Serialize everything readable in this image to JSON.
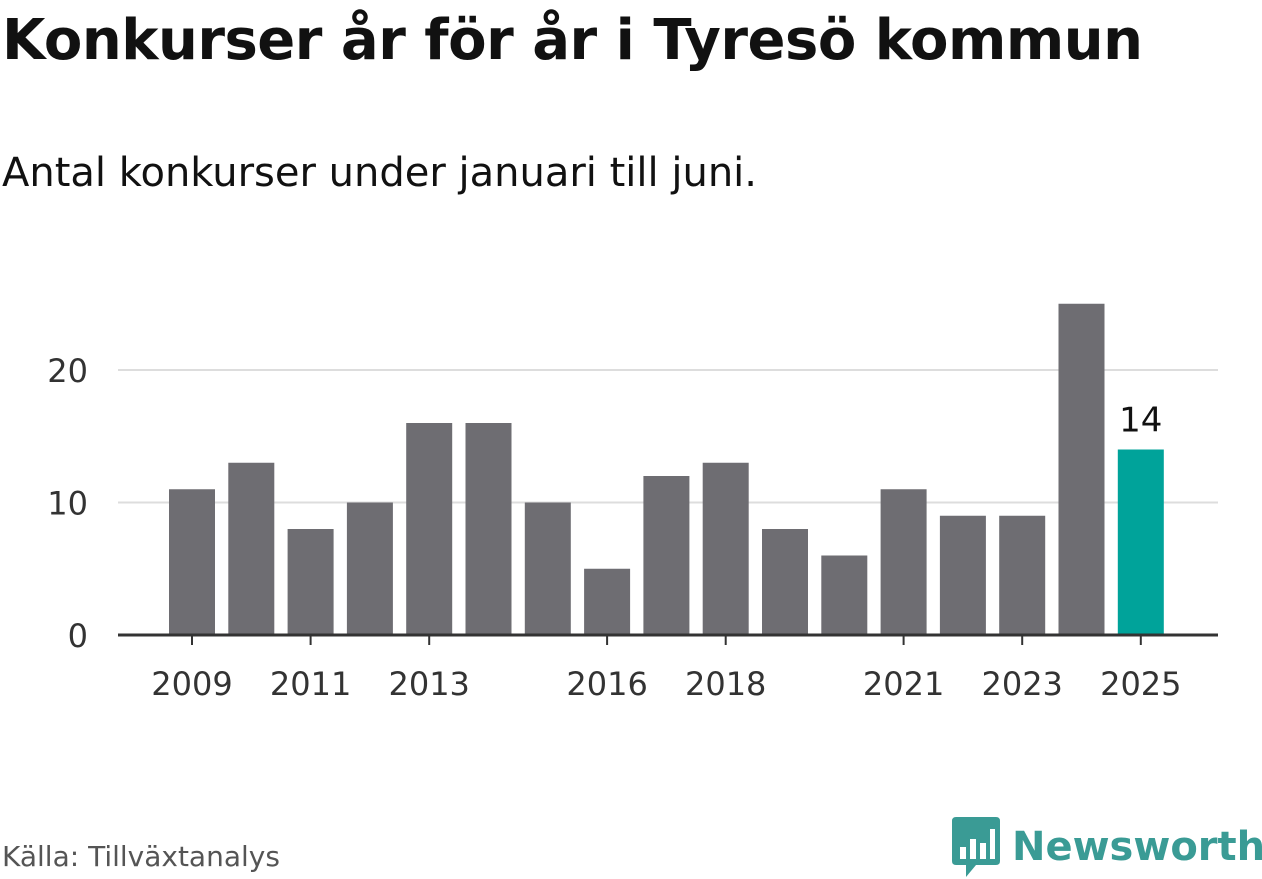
{
  "title": "Konkurser år för år i Tyresö kommun",
  "subtitle": "Antal konkurser under januari till juni.",
  "source": "Källa: Tillväxtanalys",
  "brand": {
    "name": "Newsworthy",
    "icon": "newsworthy-logo-icon",
    "color": "#3a9b95"
  },
  "chart_data": {
    "type": "bar",
    "categories": [
      "2009",
      "2010",
      "2011",
      "2012",
      "2013",
      "2014",
      "2015",
      "2016",
      "2017",
      "2018",
      "2019",
      "2020",
      "2021",
      "2022",
      "2023",
      "2024",
      "2025"
    ],
    "values": [
      11,
      13,
      8,
      10,
      16,
      16,
      10,
      5,
      12,
      13,
      8,
      6,
      11,
      9,
      9,
      25,
      14
    ],
    "x_tick_labels": [
      "2009",
      "2011",
      "2013",
      "2016",
      "2018",
      "2021",
      "2023",
      "2025"
    ],
    "y_ticks": [
      0,
      10,
      20
    ],
    "ylim": [
      0,
      25
    ],
    "grid": true,
    "bar_color": "#6e6d72",
    "highlight_color": "#00a39a",
    "highlight_category": "2025",
    "data_labels": [
      {
        "category": "2025",
        "text": "14"
      }
    ],
    "xlabel": "",
    "ylabel": ""
  }
}
